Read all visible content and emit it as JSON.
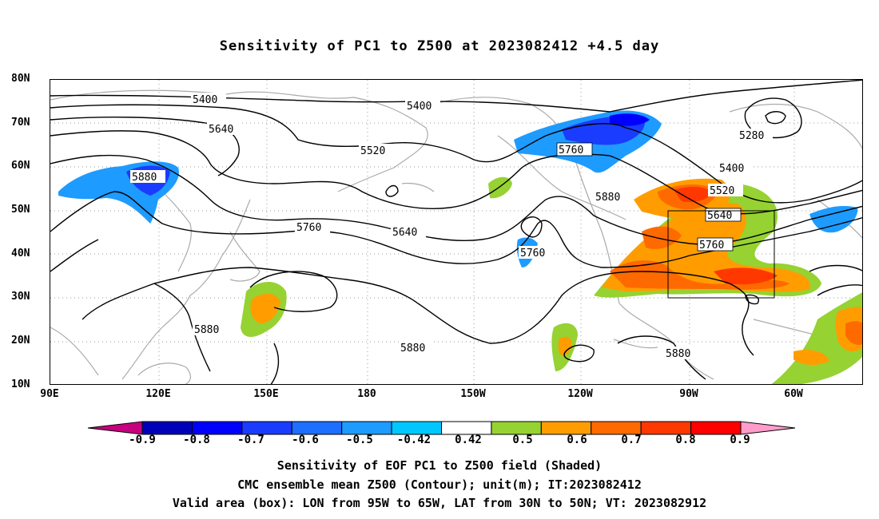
{
  "title": "Sensitivity of PC1 to Z500 at 2023082412 +4.5 day",
  "lat_labels": [
    "80N",
    "70N",
    "60N",
    "50N",
    "40N",
    "30N",
    "20N",
    "10N"
  ],
  "lon_labels": [
    "90E",
    "120E",
    "150E",
    "180",
    "150W",
    "120W",
    "90W",
    "60W"
  ],
  "contour_labels": [
    "5400",
    "5400",
    "5640",
    "5520",
    "5760",
    "5280",
    "5400",
    "5520",
    "5880",
    "5640",
    "5760",
    "5640",
    "5760",
    "5760",
    "5880",
    "5880",
    "5880",
    "5880"
  ],
  "valid_box": {
    "lon_west": "95W",
    "lon_east": "65W",
    "lat_south": "30N",
    "lat_north": "50N"
  },
  "colorbar": {
    "labels": [
      "-0.9",
      "-0.8",
      "-0.7",
      "-0.6",
      "-0.5",
      "-0.42",
      "0.42",
      "0.5",
      "0.6",
      "0.7",
      "0.8",
      "0.9"
    ],
    "colors": [
      "#c6007e",
      "#0000b8",
      "#0000ff",
      "#1a3cff",
      "#1e6eff",
      "#1e9bff",
      "#00c8ff",
      "#ffffff",
      "#96d232",
      "#ff9d00",
      "#ff6a00",
      "#ff3800",
      "#ff0000",
      "#ff9ccc"
    ]
  },
  "captions": [
    "Sensitivity of EOF PC1 to Z500 field (Shaded)",
    "CMC ensemble mean Z500 (Contour); unit(m); IT:2023082412",
    "Valid area (box): LON from 95W to 65W, LAT from 30N to 50N; VT: 2023082912"
  ]
}
